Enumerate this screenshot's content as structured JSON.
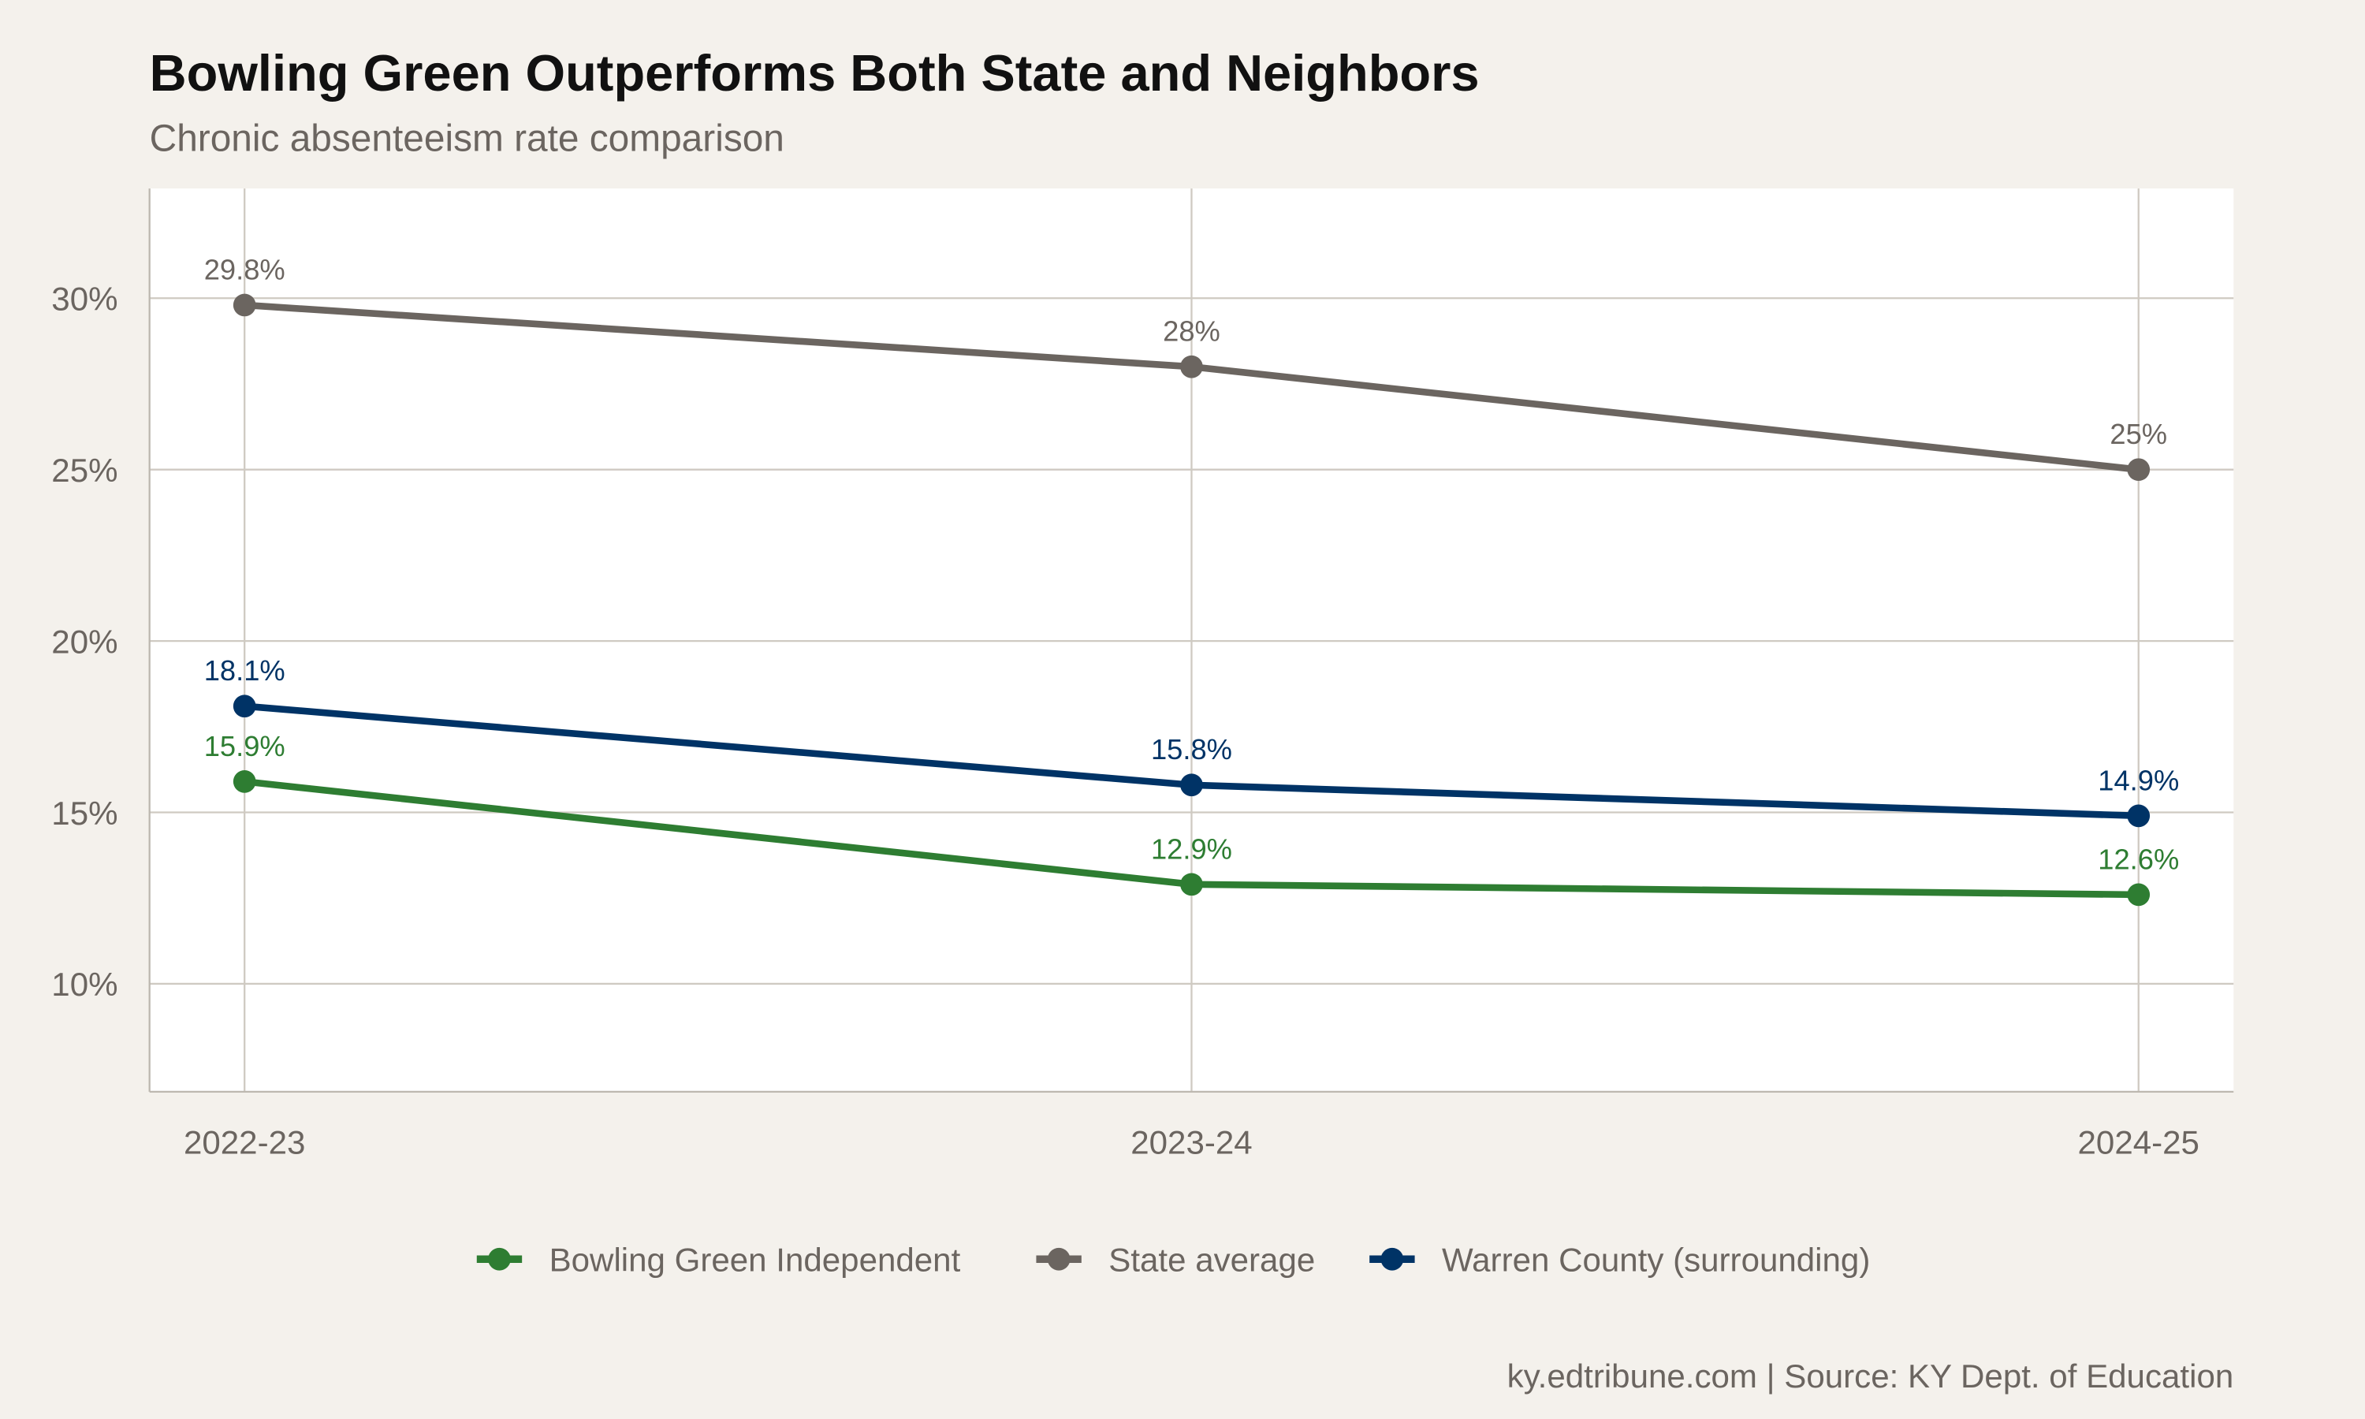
{
  "chart_data": {
    "type": "line",
    "title": "Bowling Green Outperforms Both State and Neighbors",
    "subtitle": "Chronic absenteeism rate comparison",
    "caption": "ky.edtribune.com | Source: KY Dept. of Education",
    "xlabel": "",
    "ylabel": "",
    "categories": [
      "2022-23",
      "2023-24",
      "2024-25"
    ],
    "ylim": [
      6.85,
      33.2
    ],
    "yticks": [
      10,
      15,
      20,
      25,
      30
    ],
    "ytick_labels": [
      "10%",
      "15%",
      "20%",
      "25%",
      "30%"
    ],
    "grid": true,
    "legend_position": "bottom",
    "background": "#f4f1ec",
    "panel_background": "#ffffff",
    "series": [
      {
        "name": "Bowling Green Independent",
        "color": "#2e7d32",
        "values": [
          15.9,
          12.9,
          12.6
        ],
        "labels": [
          "15.9%",
          "12.9%",
          "12.6%"
        ]
      },
      {
        "name": "State average",
        "color": "#6b6560",
        "values": [
          29.8,
          28,
          25
        ],
        "labels": [
          "29.8%",
          "28%",
          "25%"
        ]
      },
      {
        "name": "Warren County (surrounding)",
        "color": "#003366",
        "values": [
          18.1,
          15.8,
          14.9
        ],
        "labels": [
          "18.1%",
          "15.8%",
          "14.9%"
        ]
      }
    ]
  }
}
